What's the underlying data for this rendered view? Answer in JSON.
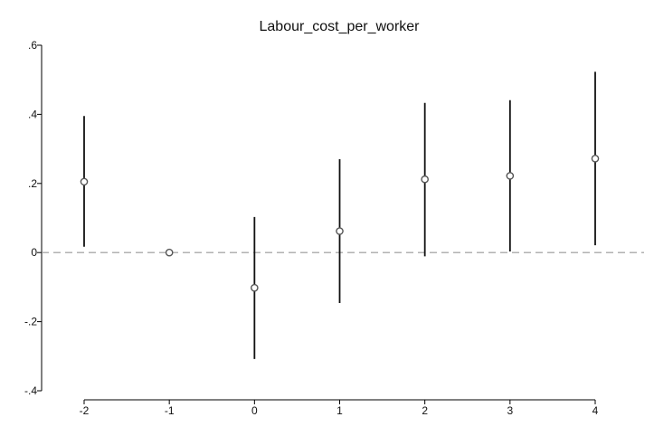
{
  "chart_data": {
    "type": "scatter",
    "title": "Labour_cost_per_worker",
    "xlabel": "",
    "ylabel": "",
    "x_ticks": [
      "-2",
      "-1",
      "0",
      "1",
      "2",
      "3",
      "4"
    ],
    "y_ticks": [
      ".6",
      ".4",
      ".2",
      "0",
      "-.2",
      "-.4"
    ],
    "y_tick_values": [
      0.6,
      0.4,
      0.2,
      0,
      -0.2,
      -0.4
    ],
    "xlim": [
      -2,
      4
    ],
    "ylim": [
      -0.4,
      0.6
    ],
    "grid": false,
    "reference_line": {
      "y": 0,
      "style": "dashed"
    },
    "series": [
      {
        "points": [
          {
            "x": -2,
            "y": 0.205,
            "ci_low": 0.017,
            "ci_high": 0.395
          },
          {
            "x": -1,
            "y": 0.0,
            "ci_low": null,
            "ci_high": null
          },
          {
            "x": 0,
            "y": -0.102,
            "ci_low": -0.308,
            "ci_high": 0.103
          },
          {
            "x": 1,
            "y": 0.062,
            "ci_low": -0.146,
            "ci_high": 0.27
          },
          {
            "x": 2,
            "y": 0.212,
            "ci_low": -0.011,
            "ci_high": 0.433
          },
          {
            "x": 3,
            "y": 0.222,
            "ci_low": 0.003,
            "ci_high": 0.441
          },
          {
            "x": 4,
            "y": 0.272,
            "ci_low": 0.021,
            "ci_high": 0.523
          }
        ]
      }
    ]
  }
}
